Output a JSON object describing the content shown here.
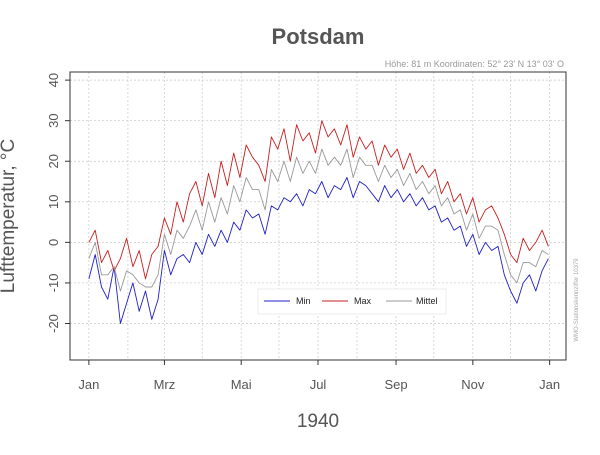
{
  "chart_data": {
    "type": "line",
    "title": "Potsdam",
    "subtitle": "Höhe: 81 m    Koordinaten: 52° 23' N   13° 03' O",
    "xlabel": "1940",
    "ylabel": "Lufttemperatur, °C",
    "side_note": "WMO-Stationskennziffer 10379",
    "ylim": [
      -29,
      42
    ],
    "yticks": [
      -20,
      -10,
      0,
      10,
      20,
      30,
      40
    ],
    "x_ticks": [
      {
        "label": "Jan",
        "day": 1
      },
      {
        "label": "Mrz",
        "day": 61
      },
      {
        "label": "Mai",
        "day": 122
      },
      {
        "label": "Jul",
        "day": 183
      },
      {
        "label": "Sep",
        "day": 245
      },
      {
        "label": "Nov",
        "day": 306
      },
      {
        "label": "Jan",
        "day": 367
      }
    ],
    "month_grid_days": [
      32,
      91,
      152,
      214,
      275,
      336
    ],
    "xlim": [
      -14,
      380
    ],
    "grid": true,
    "legend_position": "bottom-center",
    "series": [
      {
        "name": "Min",
        "color": "#1f1fc8",
        "x": [
          1,
          6,
          11,
          16,
          21,
          26,
          31,
          36,
          41,
          46,
          51,
          56,
          61,
          66,
          71,
          76,
          81,
          86,
          91,
          96,
          101,
          106,
          111,
          116,
          121,
          126,
          131,
          136,
          141,
          146,
          151,
          156,
          161,
          166,
          171,
          176,
          181,
          186,
          191,
          196,
          201,
          206,
          211,
          216,
          221,
          226,
          231,
          236,
          241,
          246,
          251,
          256,
          261,
          266,
          271,
          276,
          281,
          286,
          291,
          296,
          301,
          306,
          311,
          316,
          321,
          326,
          331,
          336,
          341,
          346,
          351,
          356,
          361,
          366
        ],
        "values": [
          -9,
          -3,
          -11,
          -14,
          -6,
          -20,
          -15,
          -10,
          -17,
          -12,
          -19,
          -14,
          -2,
          -8,
          -4,
          -3,
          -5,
          0,
          -3,
          2,
          -1,
          3,
          0,
          5,
          3,
          8,
          6,
          7,
          2,
          9,
          8,
          11,
          10,
          12,
          9,
          13,
          12,
          15,
          11,
          14,
          13,
          16,
          11,
          15,
          14,
          12,
          10,
          14,
          11,
          13,
          10,
          12,
          9,
          11,
          8,
          9,
          5,
          6,
          3,
          4,
          -1,
          2,
          -3,
          0,
          -2,
          -1,
          -8,
          -12,
          -15,
          -10,
          -8,
          -12,
          -7,
          -4
        ]
      },
      {
        "name": "Max",
        "color": "#c81f1f",
        "x": [
          1,
          6,
          11,
          16,
          21,
          26,
          31,
          36,
          41,
          46,
          51,
          56,
          61,
          66,
          71,
          76,
          81,
          86,
          91,
          96,
          101,
          106,
          111,
          116,
          121,
          126,
          131,
          136,
          141,
          146,
          151,
          156,
          161,
          166,
          171,
          176,
          181,
          186,
          191,
          196,
          201,
          206,
          211,
          216,
          221,
          226,
          231,
          236,
          241,
          246,
          251,
          256,
          261,
          266,
          271,
          276,
          281,
          286,
          291,
          296,
          301,
          306,
          311,
          316,
          321,
          326,
          331,
          336,
          341,
          346,
          351,
          356,
          361,
          366
        ],
        "values": [
          0,
          3,
          -5,
          -2,
          -7,
          -4,
          1,
          -6,
          -2,
          -9,
          -3,
          -1,
          6,
          2,
          10,
          5,
          12,
          15,
          9,
          17,
          11,
          20,
          14,
          22,
          16,
          24,
          21,
          19,
          15,
          26,
          23,
          28,
          20,
          29,
          25,
          27,
          22,
          30,
          26,
          28,
          24,
          29,
          21,
          26,
          23,
          25,
          19,
          24,
          21,
          23,
          18,
          22,
          17,
          19,
          16,
          18,
          12,
          15,
          10,
          12,
          7,
          11,
          5,
          8,
          9,
          6,
          2,
          -3,
          -5,
          1,
          -2,
          0,
          3,
          -1
        ]
      },
      {
        "name": "Mittel",
        "color": "#999999",
        "x": [
          1,
          6,
          11,
          16,
          21,
          26,
          31,
          36,
          41,
          46,
          51,
          56,
          61,
          66,
          71,
          76,
          81,
          86,
          91,
          96,
          101,
          106,
          111,
          116,
          121,
          126,
          131,
          136,
          141,
          146,
          151,
          156,
          161,
          166,
          171,
          176,
          181,
          186,
          191,
          196,
          201,
          206,
          211,
          216,
          221,
          226,
          231,
          236,
          241,
          246,
          251,
          256,
          261,
          266,
          271,
          276,
          281,
          286,
          291,
          296,
          301,
          306,
          311,
          316,
          321,
          326,
          331,
          336,
          341,
          346,
          351,
          356,
          361,
          366
        ],
        "values": [
          -4,
          0,
          -8,
          -8,
          -6,
          -12,
          -7,
          -8,
          -10,
          -11,
          -11,
          -8,
          2,
          -3,
          3,
          1,
          4,
          8,
          3,
          10,
          5,
          11,
          7,
          14,
          10,
          16,
          13,
          13,
          8,
          18,
          15,
          20,
          15,
          21,
          17,
          20,
          17,
          23,
          19,
          21,
          19,
          23,
          16,
          21,
          19,
          19,
          15,
          19,
          16,
          18,
          14,
          17,
          13,
          15,
          12,
          14,
          9,
          11,
          7,
          8,
          3,
          7,
          1,
          4,
          4,
          3,
          -3,
          -8,
          -10,
          -5,
          -5,
          -6,
          -2,
          -3
        ]
      }
    ]
  }
}
